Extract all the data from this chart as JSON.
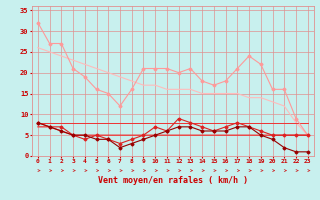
{
  "bg_color": "#c8f0ee",
  "grid_color": "#e09090",
  "xlabel": "Vent moyen/en rafales ( km/h )",
  "xlabel_color": "#cc0000",
  "tick_color": "#cc0000",
  "xlim": [
    -0.5,
    23.5
  ],
  "ylim": [
    0,
    36
  ],
  "yticks": [
    0,
    5,
    10,
    15,
    20,
    25,
    30,
    35
  ],
  "xticks": [
    0,
    1,
    2,
    3,
    4,
    5,
    6,
    7,
    8,
    9,
    10,
    11,
    12,
    13,
    14,
    15,
    16,
    17,
    18,
    19,
    20,
    21,
    22,
    23
  ],
  "series": [
    {
      "x": [
        0,
        1,
        2,
        3,
        4,
        5,
        6,
        7,
        8,
        9,
        10,
        11,
        12,
        13,
        14,
        15,
        16,
        17,
        18,
        19,
        20,
        21,
        22,
        23
      ],
      "y": [
        32,
        27,
        27,
        21,
        19,
        16,
        15,
        12,
        16,
        21,
        21,
        21,
        20,
        21,
        18,
        17,
        18,
        21,
        24,
        22,
        16,
        16,
        9,
        5
      ],
      "color": "#ff9999",
      "lw": 0.8,
      "marker": "D",
      "ms": 1.5,
      "zorder": 3
    },
    {
      "x": [
        0,
        1,
        2,
        3,
        4,
        5,
        6,
        7,
        8,
        9,
        10,
        11,
        12,
        13,
        14,
        15,
        16,
        17,
        18,
        19,
        20,
        21,
        22,
        23
      ],
      "y": [
        26,
        25,
        24,
        23,
        22,
        21,
        20,
        19,
        18,
        17,
        17,
        16,
        16,
        16,
        15,
        15,
        15,
        15,
        14,
        14,
        13,
        12,
        8,
        5
      ],
      "color": "#ffbbbb",
      "lw": 0.8,
      "marker": null,
      "ms": 0,
      "zorder": 2
    },
    {
      "x": [
        0,
        1,
        2,
        3,
        4,
        5,
        6,
        7,
        8,
        9,
        10,
        11,
        12,
        13,
        14,
        15,
        16,
        17,
        18,
        19,
        20,
        21,
        22,
        23
      ],
      "y": [
        8,
        7,
        7,
        5,
        4,
        5,
        4,
        3,
        4,
        5,
        7,
        6,
        9,
        8,
        7,
        6,
        7,
        8,
        7,
        6,
        5,
        5,
        5,
        5
      ],
      "color": "#dd2222",
      "lw": 0.8,
      "marker": "D",
      "ms": 1.5,
      "zorder": 4
    },
    {
      "x": [
        0,
        1,
        2,
        3,
        4,
        5,
        6,
        7,
        8,
        9,
        10,
        11,
        12,
        13,
        14,
        15,
        16,
        17,
        18,
        19,
        20,
        21,
        22,
        23
      ],
      "y": [
        8,
        7,
        6,
        5,
        5,
        4,
        4,
        2,
        3,
        4,
        5,
        6,
        7,
        7,
        6,
        6,
        6,
        7,
        7,
        5,
        4,
        2,
        1,
        1
      ],
      "color": "#990000",
      "lw": 0.8,
      "marker": "D",
      "ms": 1.5,
      "zorder": 4
    },
    {
      "x": [
        0,
        1,
        2,
        3,
        4,
        5,
        6,
        7,
        8,
        9,
        10,
        11,
        12,
        13,
        14,
        15,
        16,
        17,
        18,
        19,
        20,
        21,
        22,
        23
      ],
      "y": [
        7,
        7,
        6,
        5,
        5,
        5,
        5,
        5,
        5,
        5,
        5,
        5,
        5,
        5,
        5,
        5,
        5,
        5,
        5,
        5,
        5,
        5,
        5,
        5
      ],
      "color": "#ee3333",
      "lw": 0.9,
      "marker": null,
      "ms": 0,
      "zorder": 2
    },
    {
      "x": [
        0,
        1,
        2,
        3,
        4,
        5,
        6,
        7,
        8,
        9,
        10,
        11,
        12,
        13,
        14,
        15,
        16,
        17,
        18,
        19,
        20,
        21,
        22,
        23
      ],
      "y": [
        8,
        8,
        8,
        8,
        8,
        8,
        8,
        8,
        8,
        8,
        8,
        8,
        8,
        8,
        8,
        8,
        8,
        8,
        8,
        8,
        8,
        8,
        8,
        8
      ],
      "color": "#ee3333",
      "lw": 0.7,
      "marker": null,
      "ms": 0,
      "zorder": 2
    }
  ],
  "arrow_color": "#cc3333"
}
